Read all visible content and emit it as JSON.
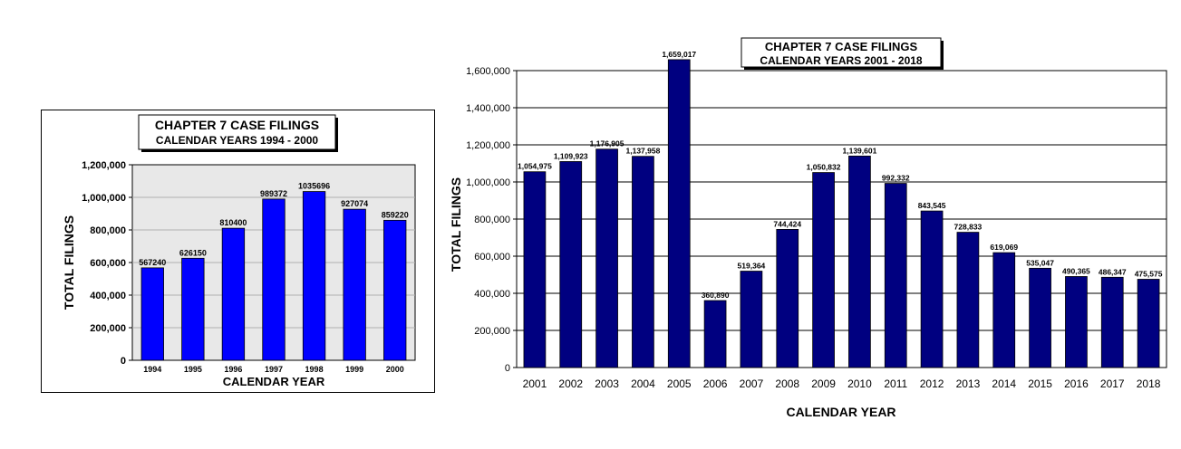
{
  "chart_data": [
    {
      "type": "bar",
      "title": "CHAPTER 7 CASE FILINGS",
      "subtitle": "CALENDAR YEARS 1994 - 2000",
      "xlabel": "CALENDAR YEAR",
      "ylabel": "TOTAL FILINGS",
      "categories": [
        "1994",
        "1995",
        "1996",
        "1997",
        "1998",
        "1999",
        "2000"
      ],
      "values": [
        567240,
        626150,
        810400,
        989372,
        1035696,
        927074,
        859220
      ],
      "value_labels": [
        "567240",
        "626150",
        "810400",
        "989372",
        "1035696",
        "927074",
        "859220"
      ],
      "ylim": [
        0,
        1200000
      ],
      "yticks": [
        "0",
        "200,000",
        "400,000",
        "600,000",
        "800,000",
        "1,000,000",
        "1,200,000"
      ],
      "bar_color": "#0000FF",
      "grid": true
    },
    {
      "type": "bar",
      "title": "CHAPTER 7 CASE FILINGS",
      "subtitle": "CALENDAR YEARS 2001 - 2018",
      "xlabel": "CALENDAR YEAR",
      "ylabel": "TOTAL FILINGS",
      "categories": [
        "2001",
        "2002",
        "2003",
        "2004",
        "2005",
        "2006",
        "2007",
        "2008",
        "2009",
        "2010",
        "2011",
        "2012",
        "2013",
        "2014",
        "2015",
        "2016",
        "2017",
        "2018"
      ],
      "values": [
        1054975,
        1109923,
        1176905,
        1137958,
        1659017,
        360890,
        519364,
        744424,
        1050832,
        1139601,
        992332,
        843545,
        728833,
        619069,
        535047,
        490365,
        486347,
        475575
      ],
      "value_labels": [
        "1,054,975",
        "1,109,923",
        "1,176,905",
        "1,137,958",
        "1,659,017",
        "360,890",
        "519,364",
        "744,424",
        "1,050,832",
        "1,139,601",
        "992,332",
        "843,545",
        "728,833",
        "619,069",
        "535,047",
        "490,365",
        "486,347",
        "475,575"
      ],
      "ylim": [
        0,
        1600000
      ],
      "yticks": [
        "0",
        "200,000",
        "400,000",
        "600,000",
        "800,000",
        "1,000,000",
        "1,200,000",
        "1,400,000",
        "1,600,000"
      ],
      "bar_color": "#000080",
      "grid": true
    }
  ]
}
